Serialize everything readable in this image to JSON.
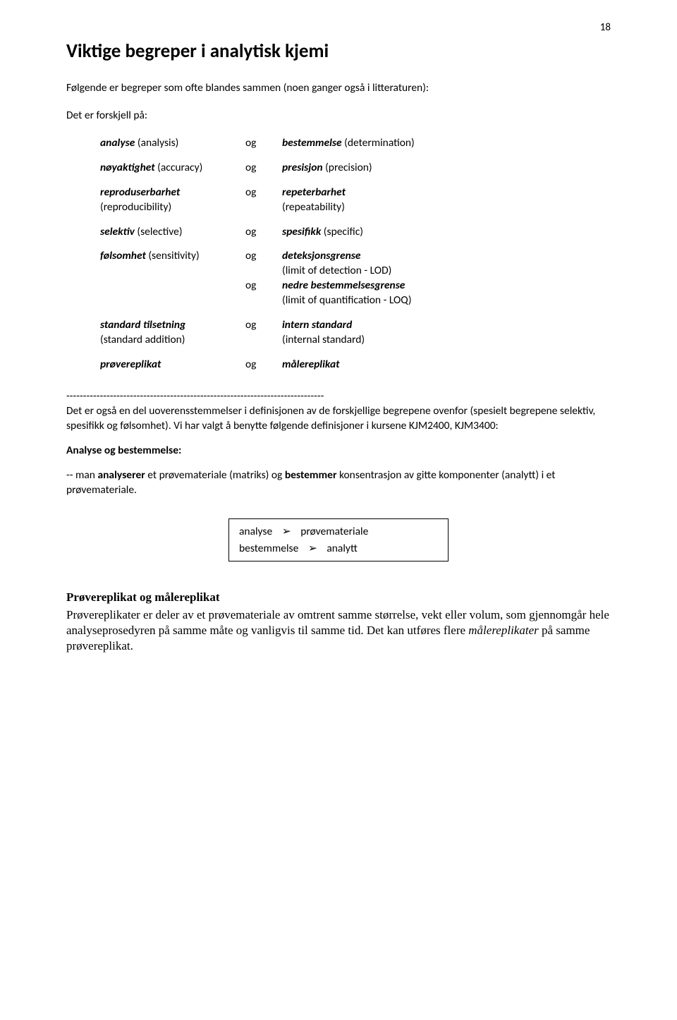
{
  "page_number": "18",
  "title": "Viktige begreper i analytisk kjemi",
  "intro_line1": "Følgende er begreper som ofte blandes sammen (noen ganger også i litteraturen):",
  "intro_line2": "Det er forskjell på:",
  "og": "og",
  "terms": {
    "r1_left_italic": "analyse",
    "r1_left_paren": " (analysis)",
    "r1_right_italic": "bestemmelse",
    "r1_right_paren": "  (determination)",
    "r2_left_italic": "nøyaktighet",
    "r2_left_paren": " (accuracy)",
    "r2_right_italic": "presisjon",
    "r2_right_paren": " (precision)",
    "r3_left_italic": "reproduserbarhet",
    "r3_left_paren2": "(reproducibility)",
    "r3_right_italic": "repeterbarhet",
    "r3_right_paren2": "(repeatability)",
    "r4_left_italic": "selektiv",
    "r4_left_paren": " (selective)",
    "r4_right_italic": "spesifikk",
    "r4_right_paren": " (specific)",
    "r5_left_italic": "følsomhet",
    "r5_left_paren": " (sensitivity)",
    "r5_right_a_italic": "deteksjonsgrense",
    "r5_right_a_plain": "(limit of detection - LOD)",
    "r5_right_b_italic": "nedre bestemmelsesgrense",
    "r5_right_b_plain": "(limit of quantification - LOQ)",
    "r6_left_italic": "standard tilsetning",
    "r6_left_paren2": "(standard addition)",
    "r6_right_italic": "intern standard",
    "r6_right_paren2": "(internal standard)",
    "r7_left_italic": "prøvereplikat",
    "r7_right_italic": "målereplikat"
  },
  "divider": "-----------------------------------------------------------------------------",
  "after_divider": {
    "text_a": "Det er også en del uoverensstemmelser i definisjonen av de forskjellige begrepene ovenfor (spesielt begrepene selektiv, spesifikk og følsomhet). Vi har valgt å benytte følgende definisjoner i kursene KJM2400, KJM3400:"
  },
  "section1_head": "Analyse og bestemmelse:",
  "section1_body_prefix": "--  man ",
  "section1_body_b1": "analyserer",
  "section1_body_mid1": " et prøvemateriale (matriks) og ",
  "section1_body_b2": "bestemmer",
  "section1_body_suffix": " konsentrasjon av gitte komponenter (analytt) i et prøvemateriale.",
  "box": {
    "l1_a": "analyse",
    "l1_b": "prøvemateriale",
    "l2_a": "bestemmelse",
    "l2_b": "analytt",
    "arrow": "➢"
  },
  "final": {
    "head": "Prøvereplikat og målereplikat",
    "body_a": "Prøvereplikater er deler av et prøvemateriale av omtrent samme størrelse, vekt eller volum, som gjennomgår hele analyseprosedyren på samme måte og vanligvis til samme tid. Det kan utføres flere ",
    "body_ital": "målereplikater",
    "body_b": " på samme prøvereplikat."
  }
}
